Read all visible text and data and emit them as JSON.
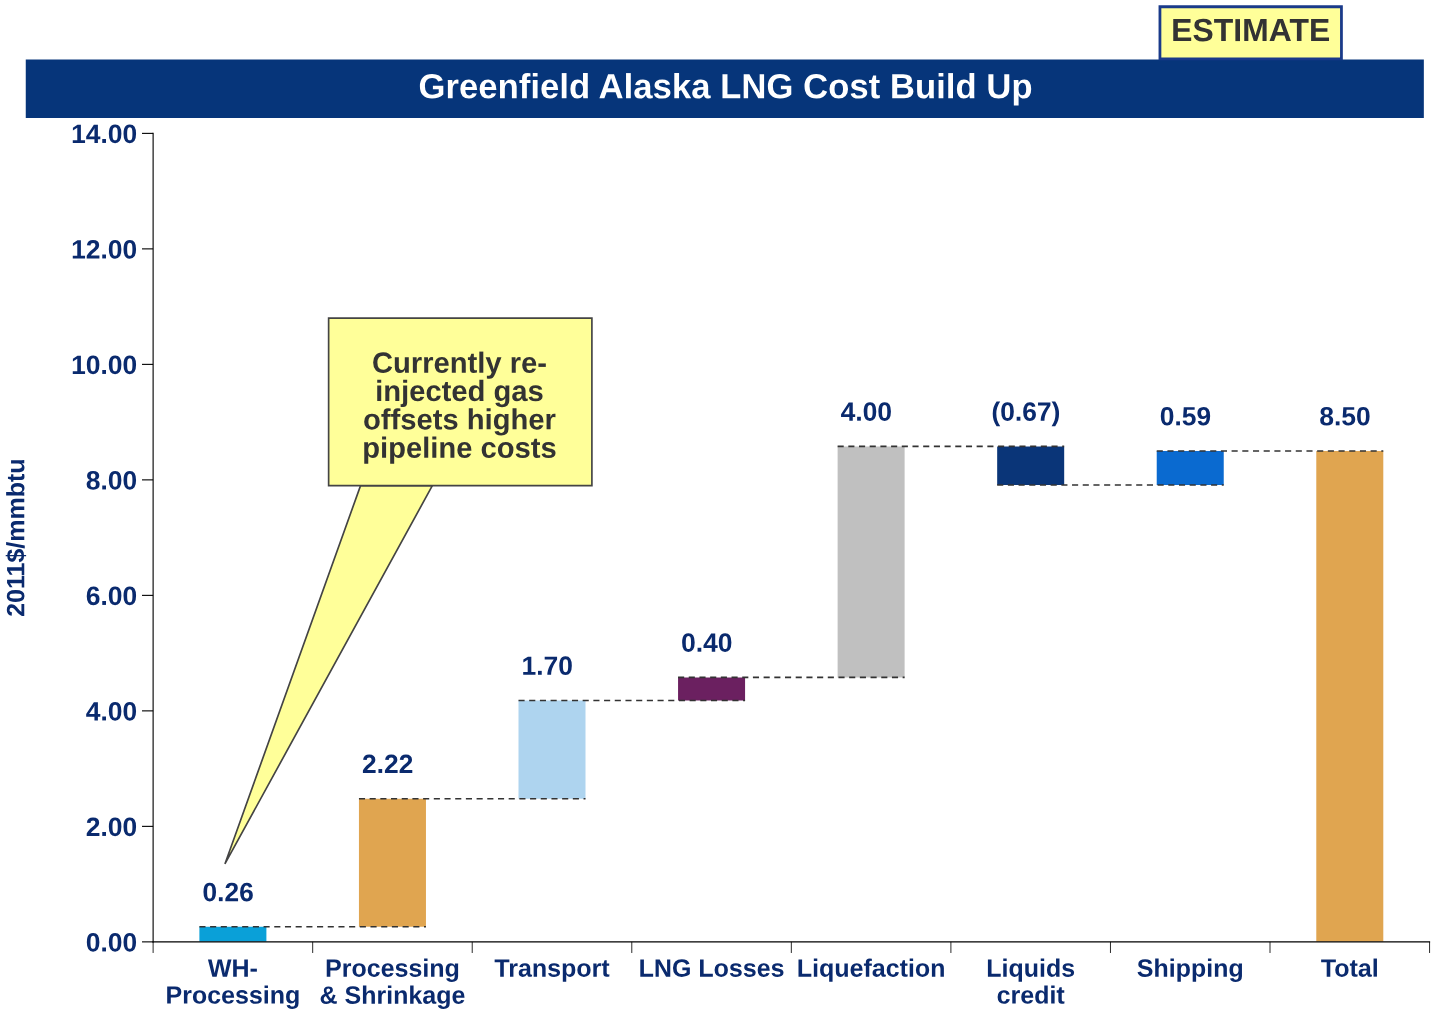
{
  "chart_data": {
    "type": "bar",
    "title": "Greenfield Alaska LNG Cost Build Up",
    "ylabel": "2011$/mmbtu",
    "categories": [
      "WH-\nProcessing",
      "Processing\n& Shrinkage",
      "Transport",
      "LNG Losses",
      "Liquefaction",
      "Liquids\ncredit",
      "Shipping",
      "Total"
    ],
    "values": [
      0.26,
      2.22,
      1.7,
      0.4,
      4.0,
      -0.67,
      0.59,
      8.5
    ],
    "base": [
      0,
      0.26,
      2.48,
      4.18,
      4.58,
      8.58,
      7.91,
      0
    ],
    "colors": [
      "#0aa0d8",
      "#e0a550",
      "#aed4ef",
      "#6b2060",
      "#c0c0c0",
      "#0a3578",
      "#0a6ad0",
      "#e0a550"
    ],
    "value_labels": [
      "0.26",
      "2.22",
      "1.70",
      "0.40",
      "4.00",
      "(0.67)",
      "0.59",
      "8.50"
    ],
    "ylim": [
      0,
      14
    ],
    "yticks": [
      {
        "value": 0,
        "label": "0.00"
      },
      {
        "value": 2,
        "label": "2.00"
      },
      {
        "value": 4,
        "label": "4.00"
      },
      {
        "value": 6,
        "label": "6.00"
      },
      {
        "value": 8,
        "label": "8.00"
      },
      {
        "value": 10,
        "label": "10.00"
      },
      {
        "value": 12,
        "label": "12.00"
      },
      {
        "value": 14,
        "label": "14.00"
      }
    ],
    "grid": false,
    "legend": false,
    "annotations": [
      "ESTIMATE",
      "Currently re-\ninjected gas\noffsets higher\npipeline costs"
    ]
  }
}
